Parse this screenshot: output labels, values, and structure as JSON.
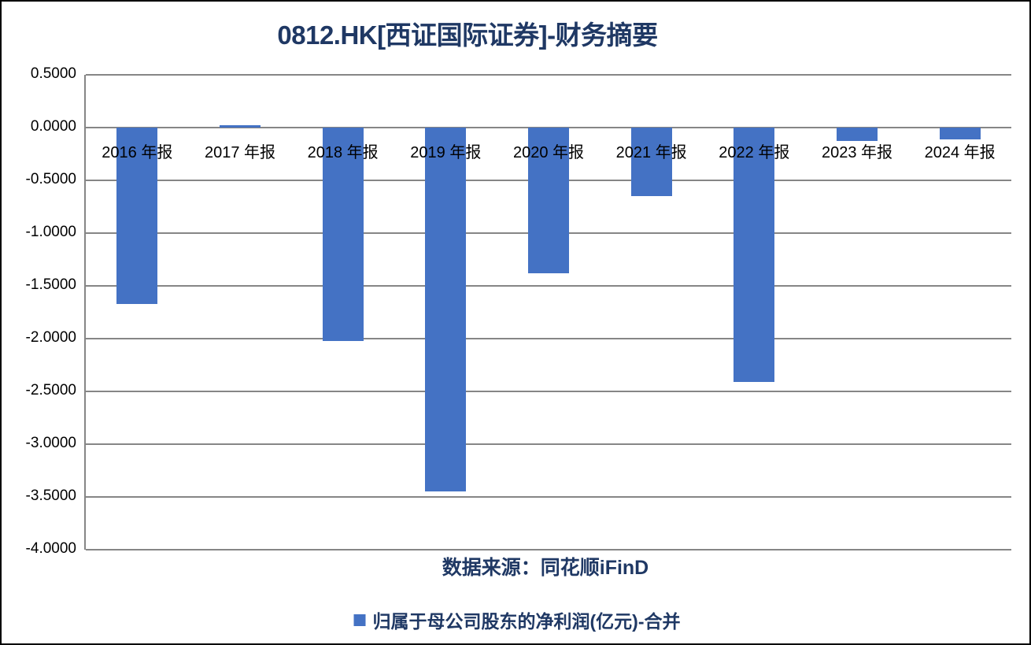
{
  "window": {
    "title": "0812.HK[西证国际证券]-财务摘要"
  },
  "chart_data": {
    "type": "bar",
    "title": "0812.HK[西证国际证券]-财务摘要",
    "categories": [
      "2016 年报",
      "2017 年报",
      "2018 年报",
      "2019 年报",
      "2020 年报",
      "2021 年报",
      "2022 年报",
      "2023 年报",
      "2024 年报"
    ],
    "series": [
      {
        "name": "归属于母公司股东的净利润(亿元)-合并",
        "values": [
          -1.67,
          0.02,
          -2.02,
          -3.45,
          -1.38,
          -0.65,
          -2.41,
          -0.13,
          -0.11
        ],
        "color": "#4472C4"
      }
    ],
    "xlabel": "",
    "ylabel": "",
    "ylim": [
      -4.0,
      0.5
    ],
    "yticks": [
      0.5,
      0.0,
      -0.5,
      -1.0,
      -1.5,
      -2.0,
      -2.5,
      -3.0,
      -3.5,
      -4.0
    ],
    "ytick_labels": [
      "0.5000",
      "0.0000",
      "-0.5000",
      "-1.0000",
      "-1.5000",
      "-2.0000",
      "-2.5000",
      "-3.0000",
      "-3.5000",
      "-4.0000"
    ],
    "grid": true,
    "legend_position": "bottom",
    "source_note": "数据来源：同花顺iFinD",
    "colors": {
      "title_text": "#1F3864",
      "bar": "#4472C4",
      "gridline": "#868686",
      "axis_text": "#000000",
      "background": "#FFFFFF",
      "outer_border": "#000000"
    }
  }
}
